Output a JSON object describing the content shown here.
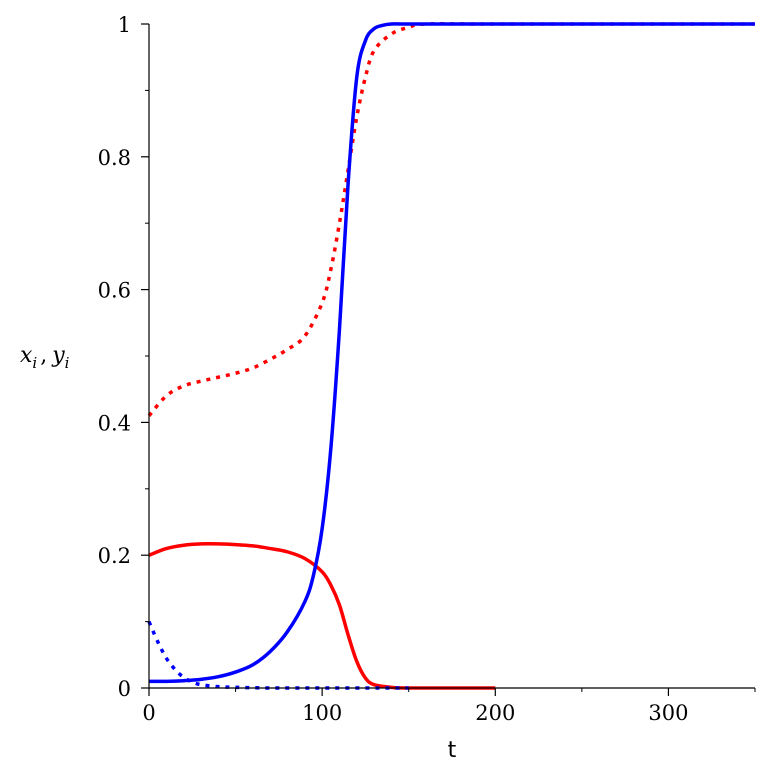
{
  "chart_data": {
    "type": "line",
    "xlabel": "t",
    "ylabel": {
      "main1": "x",
      "sub1": "i",
      "sep": ",",
      "main2": "y",
      "sub2": "i"
    },
    "xlim": [
      0,
      350
    ],
    "ylim": [
      0,
      1
    ],
    "x_ticks": [
      0,
      100,
      200,
      300
    ],
    "x_tick_labels": [
      "0",
      "100",
      "200",
      "300"
    ],
    "y_ticks": [
      0,
      0.2,
      0.4,
      0.6,
      0.8,
      1
    ],
    "y_tick_labels": [
      "0",
      "0.2",
      "0.4",
      "0.6",
      "0.8",
      "1"
    ],
    "grid": false,
    "series": [
      {
        "color": "#ff0000",
        "style": "solid",
        "x": [
          0,
          10,
          20,
          30,
          40,
          50,
          60,
          70,
          80,
          90,
          100,
          105,
          110,
          115,
          120,
          125,
          130,
          140,
          150,
          200
        ],
        "y": [
          0.2,
          0.21,
          0.215,
          0.217,
          0.217,
          0.216,
          0.214,
          0.21,
          0.205,
          0.195,
          0.175,
          0.155,
          0.125,
          0.08,
          0.04,
          0.015,
          0.005,
          0.001,
          0,
          0
        ]
      },
      {
        "color": "#ff0000",
        "style": "dotted",
        "x": [
          0,
          10,
          20,
          30,
          40,
          50,
          60,
          70,
          80,
          90,
          100,
          105,
          110,
          115,
          120,
          125,
          130,
          140,
          150,
          160,
          200,
          350
        ],
        "y": [
          0.41,
          0.44,
          0.455,
          0.462,
          0.468,
          0.474,
          0.482,
          0.495,
          0.51,
          0.53,
          0.58,
          0.63,
          0.7,
          0.78,
          0.86,
          0.92,
          0.96,
          0.985,
          0.995,
          1,
          1,
          1
        ]
      },
      {
        "color": "#0000ff",
        "style": "solid",
        "x": [
          0,
          10,
          20,
          30,
          40,
          50,
          60,
          70,
          80,
          90,
          95,
          100,
          105,
          110,
          115,
          120,
          125,
          130,
          135,
          140,
          150,
          200,
          350
        ],
        "y": [
          0.01,
          0.01,
          0.011,
          0.013,
          0.017,
          0.024,
          0.035,
          0.055,
          0.085,
          0.13,
          0.17,
          0.24,
          0.36,
          0.54,
          0.76,
          0.92,
          0.975,
          0.993,
          0.998,
          1,
          1,
          1,
          1
        ]
      },
      {
        "color": "#0000ff",
        "style": "dotted",
        "x": [
          0,
          5,
          10,
          15,
          20,
          25,
          30,
          40,
          50,
          70,
          100,
          150
        ],
        "y": [
          0.1,
          0.07,
          0.045,
          0.028,
          0.016,
          0.009,
          0.005,
          0.002,
          0.001,
          0,
          0,
          0
        ]
      }
    ]
  }
}
